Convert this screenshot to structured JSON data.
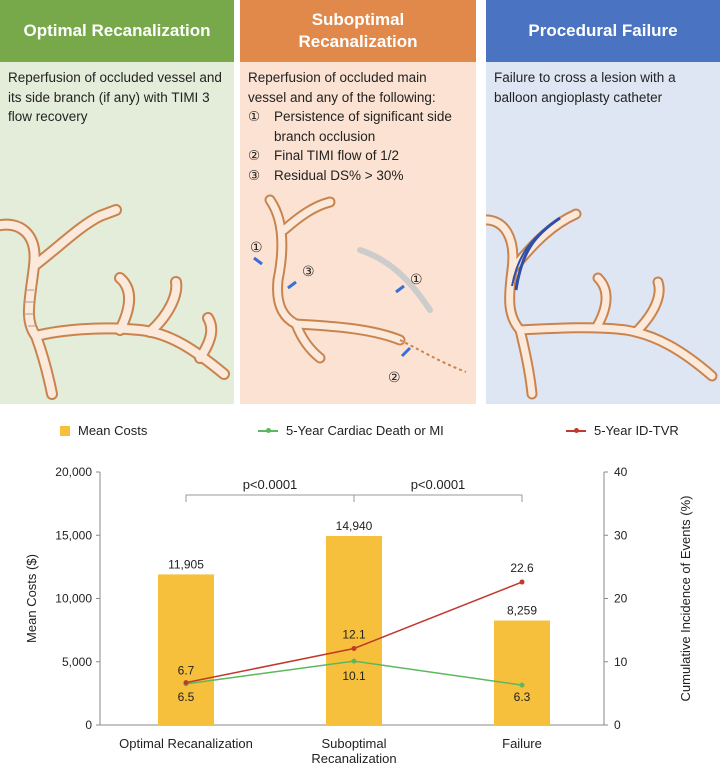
{
  "panels": [
    {
      "title": "Optimal Recanalization",
      "text": "Reperfusion of occluded vessel and its side branch (if any) with TIMI 3 flow recovery",
      "color": "#77a849"
    },
    {
      "title_line1": "Suboptimal",
      "title_line2": "Recanalization",
      "text": "Reperfusion of occluded main vessel and any of the following:",
      "items": [
        {
          "num": "①",
          "text": "Persistence of significant side branch occlusion"
        },
        {
          "num": "②",
          "text": "Final TIMI flow of 1/2"
        },
        {
          "num": "③",
          "text": "Residual DS% > 30%"
        }
      ],
      "markers": [
        "①",
        "③",
        "①",
        "②"
      ],
      "color": "#e0894a"
    },
    {
      "title": "Procedural Failure",
      "text": "Failure to cross a lesion with a balloon angioplasty catheter",
      "color": "#4a74c1"
    }
  ],
  "legend": {
    "bars": "Mean Costs",
    "series1": "5-Year Cardiac Death or MI",
    "series2": "5-Year ID-TVR"
  },
  "chart_data": {
    "type": "bar",
    "categories": [
      "Optimal Recanalization",
      "Suboptimal Recanalization",
      "Failure"
    ],
    "category_lines": [
      [
        "Optimal Recanalization"
      ],
      [
        "Suboptimal",
        "Recanalization"
      ],
      [
        "Failure"
      ]
    ],
    "bar_series": {
      "name": "Mean Costs",
      "values": [
        11905,
        14940,
        8259
      ],
      "labels": [
        "11,905",
        "14,940",
        "8,259"
      ],
      "color": "#f7c03c"
    },
    "line_series": [
      {
        "name": "5-Year Cardiac Death or MI",
        "values": [
          6.5,
          10.1,
          6.3
        ],
        "color": "#5cb85c"
      },
      {
        "name": "5-Year ID-TVR",
        "values": [
          6.7,
          12.1,
          22.6
        ],
        "color": "#c0392b"
      }
    ],
    "ylabel": "Mean Costs ($)",
    "y2label": "Cumulative Incidence of Events (%)",
    "ylim": [
      0,
      20000
    ],
    "y2lim": [
      0,
      40
    ],
    "yticks": [
      "0",
      "5,000",
      "10,000",
      "15,000",
      "20,000"
    ],
    "y2ticks": [
      "0",
      "10",
      "20",
      "30",
      "40"
    ],
    "pvalues": [
      "p<0.0001",
      "p<0.0001"
    ]
  }
}
